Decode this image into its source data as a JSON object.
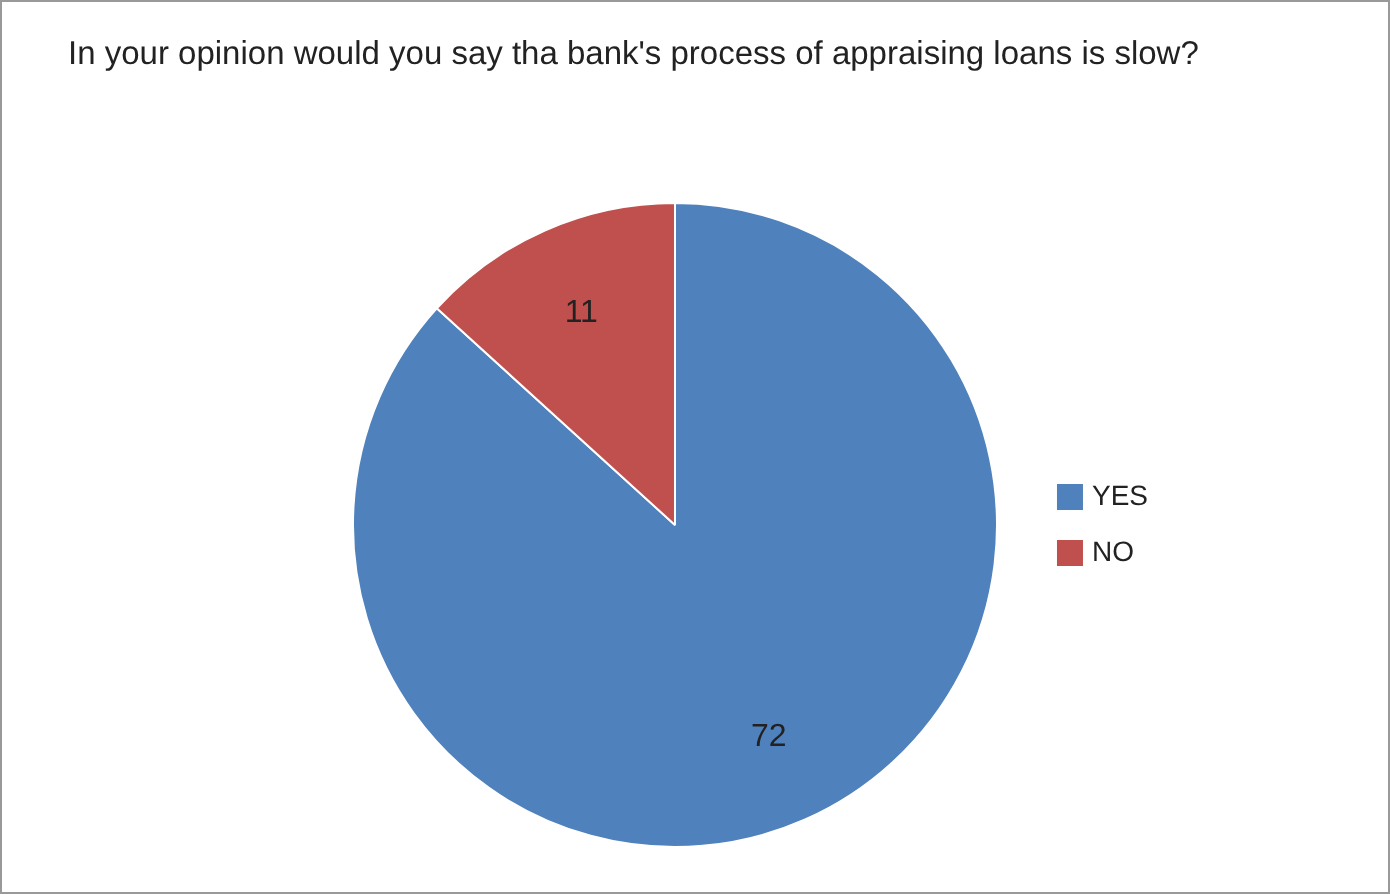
{
  "chart_data": {
    "type": "pie",
    "title": "In your opinion would you say tha bank's process of appraising loans is slow?",
    "categories": [
      "YES",
      "NO"
    ],
    "values": [
      72,
      11
    ],
    "colors": [
      "#4f81bd",
      "#c0504d"
    ],
    "data_labels": true,
    "legend": "right"
  }
}
